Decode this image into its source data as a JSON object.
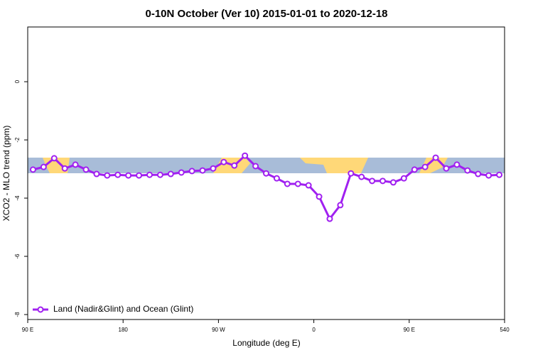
{
  "chart_data": {
    "type": "line",
    "title": "0-10N October (Ver 10)   2015-01-01 to 2020-12-18",
    "x_label": "Longitude (deg E)",
    "y_label": "XCO2 - MLO trend (ppm)",
    "x": [
      95,
      105,
      115,
      125,
      135,
      145,
      155,
      165,
      175,
      185,
      195,
      205,
      215,
      225,
      235,
      245,
      255,
      265,
      275,
      285,
      295,
      305,
      315,
      325,
      335,
      345,
      355,
      365,
      375,
      385,
      395,
      405,
      415,
      425,
      435,
      445,
      455,
      465,
      475,
      485,
      495,
      505,
      515,
      525,
      535
    ],
    "series": [
      {
        "name": "Land (Nadir&Glint) and Ocean (Glint)",
        "color": "#a020f0",
        "values": [
          -3.02,
          -2.93,
          -2.63,
          -2.98,
          -2.85,
          -3.02,
          -3.17,
          -3.22,
          -3.2,
          -3.22,
          -3.22,
          -3.2,
          -3.2,
          -3.17,
          -3.12,
          -3.07,
          -3.05,
          -2.98,
          -2.76,
          -2.88,
          -2.54,
          -2.9,
          -3.15,
          -3.32,
          -3.51,
          -3.51,
          -3.56,
          -3.95,
          -4.71,
          -4.24,
          -3.15,
          -3.27,
          -3.41,
          -3.41,
          -3.46,
          -3.32,
          -3.02,
          -2.93,
          -2.61,
          -2.98,
          -2.85,
          -3.05,
          -3.17,
          -3.22,
          -3.2
        ]
      }
    ],
    "xlim": [
      90,
      540
    ],
    "xticks": [
      {
        "value": 90,
        "label": "90 E"
      },
      180,
      {
        "value": 270,
        "label": "90 W"
      },
      {
        "value": 360,
        "label": "0"
      },
      {
        "value": 450,
        "label": "90 E"
      },
      540
    ],
    "ylim": [
      -8.17,
      1.88
    ],
    "yticks": [
      0,
      -2,
      -4,
      -6,
      -8
    ],
    "legend": "bottom-left"
  }
}
